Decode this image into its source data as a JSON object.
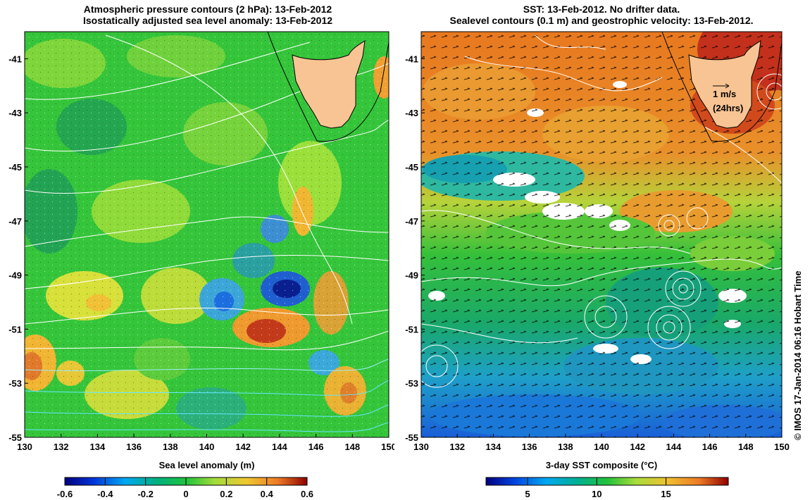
{
  "left_panel": {
    "title_line1": "Atmospheric pressure contours (2 hPa): 13-Feb-2012",
    "title_line2": "Isostatically adjusted sea level anomaly: 13-Feb-2012",
    "colorbar_label": "Sea level anomaly (m)",
    "colorbar_ticks": [
      "-0.6",
      "-0.4",
      "-0.2",
      "0",
      "0.2",
      "0.4",
      "0.6"
    ],
    "colorbar_range": [
      -0.6,
      0.6
    ]
  },
  "right_panel": {
    "title_line1": "SST: 13-Feb-2012. No drifter data.",
    "title_line2": "Sealevel contours (0.1 m) and geostrophic velocity: 13-Feb-2012.",
    "colorbar_label": "3-day SST composite (°C)",
    "colorbar_ticks": [
      "5",
      "10",
      "15"
    ],
    "colorbar_range": [
      2,
      19.5
    ],
    "velocity_scale_label": "1 m/s",
    "velocity_scale_sub": "(24hrs)"
  },
  "axes": {
    "lon_ticks": [
      "130",
      "132",
      "134",
      "136",
      "138",
      "140",
      "142",
      "144",
      "146",
      "148",
      "150"
    ],
    "lat_ticks": [
      "-41",
      "-43",
      "-45",
      "-47",
      "-49",
      "-51",
      "-53",
      "-55"
    ],
    "lon_range": [
      130,
      150
    ],
    "lat_range": [
      -55,
      -40
    ]
  },
  "credit": "© IMOS 17-Jan-2014 06:16 Hobart Time",
  "colors": {
    "land": "#f9c493",
    "coast": "#000000",
    "contour_white": "#ffffff",
    "contour_cyan": "#66e6ff"
  }
}
